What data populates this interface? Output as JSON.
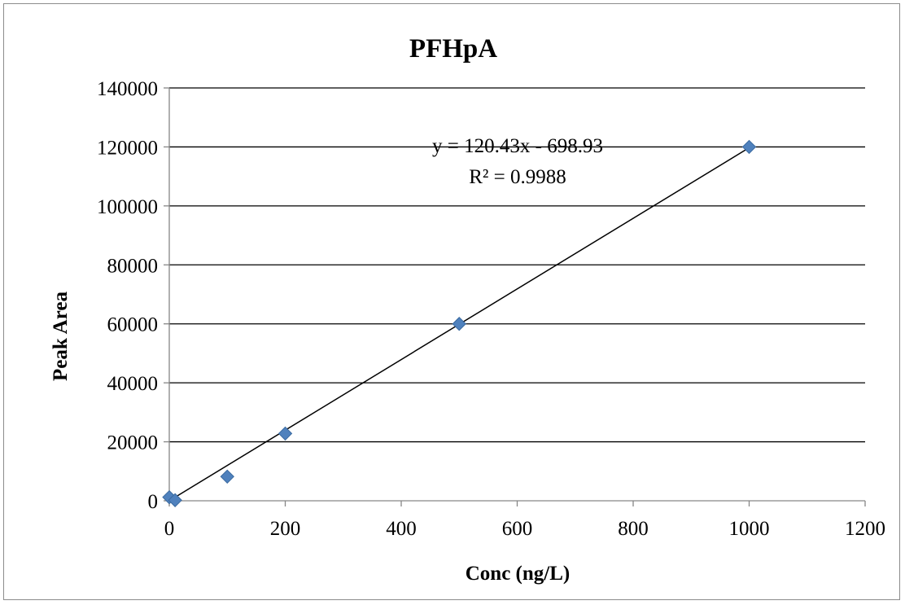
{
  "chart_data": {
    "type": "scatter",
    "title": "PFHpA",
    "xlabel": "Conc (ng/L)",
    "ylabel": "Peak Area",
    "xlim": [
      0,
      1200
    ],
    "ylim": [
      0,
      140000
    ],
    "x_ticks": [
      0,
      200,
      400,
      600,
      800,
      1000,
      1200
    ],
    "y_ticks": [
      0,
      20000,
      40000,
      60000,
      80000,
      100000,
      120000,
      140000
    ],
    "grid": "horizontal",
    "marker_color": "#4f81bd",
    "series": [
      {
        "points": [
          {
            "x": 0,
            "y": 1200
          },
          {
            "x": 10,
            "y": 200
          },
          {
            "x": 100,
            "y": 8200
          },
          {
            "x": 200,
            "y": 22800
          },
          {
            "x": 500,
            "y": 60000
          },
          {
            "x": 1000,
            "y": 120000
          }
        ]
      }
    ],
    "trendline": {
      "slope": 120.43,
      "intercept": -698.93,
      "x_range": [
        0,
        1000
      ],
      "equation": "y = 120.43x - 698.93",
      "r_squared": "R² = 0.9988"
    }
  }
}
